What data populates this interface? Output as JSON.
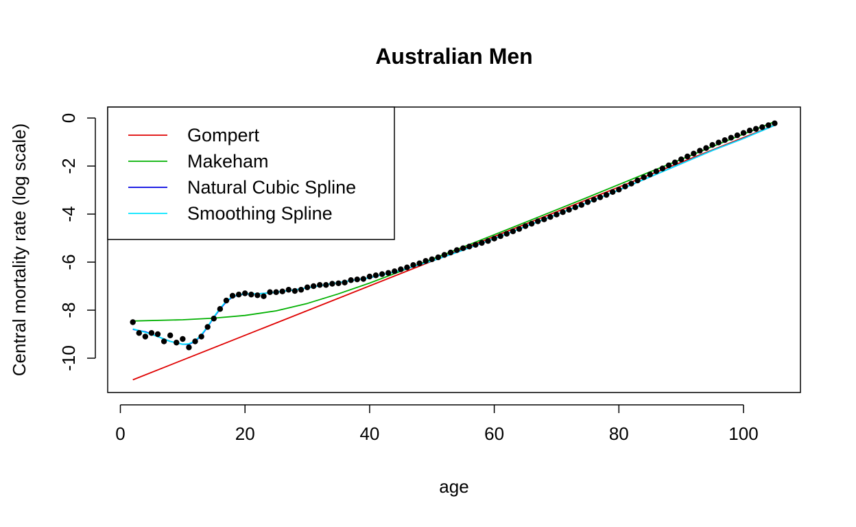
{
  "chart_data": {
    "type": "line",
    "title": "Australian Men",
    "xlabel": "age",
    "ylabel": "Central mortality rate (log scale)",
    "xlim": [
      0,
      105
    ],
    "ylim": [
      -11,
      0
    ],
    "xticks": [
      0,
      20,
      40,
      60,
      80,
      100
    ],
    "yticks": [
      0,
      -2,
      -4,
      -6,
      -8,
      -10
    ],
    "grid": false,
    "legend_position": "top-left",
    "observed": {
      "x": [
        2,
        3,
        4,
        5,
        6,
        7,
        8,
        9,
        10,
        11,
        12,
        13,
        14,
        15,
        16,
        17,
        18,
        19,
        20,
        21,
        22,
        23,
        24,
        25,
        26,
        27,
        28,
        29,
        30,
        31,
        32,
        33,
        34,
        35,
        36,
        37,
        38,
        39,
        40,
        41,
        42,
        43,
        44,
        45,
        46,
        47,
        48,
        49,
        50,
        51,
        52,
        53,
        54,
        55,
        56,
        57,
        58,
        59,
        60,
        61,
        62,
        63,
        64,
        65,
        66,
        67,
        68,
        69,
        70,
        71,
        72,
        73,
        74,
        75,
        76,
        77,
        78,
        79,
        80,
        81,
        82,
        83,
        84,
        85,
        86,
        87,
        88,
        89,
        90,
        91,
        92,
        93,
        94,
        95,
        96,
        97,
        98,
        99,
        100,
        101,
        102,
        103,
        104,
        105
      ],
      "y": [
        -8.5,
        -8.95,
        -9.1,
        -8.95,
        -9.0,
        -9.3,
        -9.05,
        -9.35,
        -9.2,
        -9.55,
        -9.3,
        -9.1,
        -8.7,
        -8.35,
        -7.95,
        -7.6,
        -7.4,
        -7.35,
        -7.3,
        -7.35,
        -7.38,
        -7.42,
        -7.25,
        -7.25,
        -7.22,
        -7.15,
        -7.2,
        -7.15,
        -7.05,
        -7.0,
        -6.95,
        -6.95,
        -6.9,
        -6.88,
        -6.85,
        -6.75,
        -6.72,
        -6.7,
        -6.6,
        -6.55,
        -6.5,
        -6.45,
        -6.38,
        -6.3,
        -6.22,
        -6.12,
        -6.05,
        -5.95,
        -5.88,
        -5.8,
        -5.7,
        -5.6,
        -5.5,
        -5.42,
        -5.35,
        -5.28,
        -5.2,
        -5.12,
        -5.02,
        -4.92,
        -4.82,
        -4.72,
        -4.62,
        -4.5,
        -4.4,
        -4.3,
        -4.22,
        -4.12,
        -4.02,
        -3.92,
        -3.82,
        -3.72,
        -3.62,
        -3.5,
        -3.4,
        -3.3,
        -3.2,
        -3.08,
        -2.98,
        -2.85,
        -2.73,
        -2.6,
        -2.47,
        -2.35,
        -2.22,
        -2.1,
        -1.97,
        -1.85,
        -1.72,
        -1.6,
        -1.48,
        -1.36,
        -1.25,
        -1.12,
        -1.02,
        -0.92,
        -0.82,
        -0.72,
        -0.62,
        -0.52,
        -0.45,
        -0.38,
        -0.3,
        -0.22
      ]
    },
    "series": [
      {
        "name": "Gompert",
        "color": "#DF0000",
        "x": [
          2,
          105
        ],
        "y": [
          -10.9,
          -0.3
        ]
      },
      {
        "name": "Makeham",
        "color": "#00B000",
        "x": [
          2,
          10,
          15,
          20,
          25,
          30,
          35,
          40,
          45,
          50,
          55,
          60,
          65,
          70,
          75,
          80,
          85,
          90,
          95,
          100,
          105
        ],
        "y": [
          -8.45,
          -8.4,
          -8.33,
          -8.22,
          -8.03,
          -7.72,
          -7.32,
          -6.87,
          -6.38,
          -5.88,
          -5.37,
          -4.86,
          -4.34,
          -3.82,
          -3.3,
          -2.77,
          -2.24,
          -1.72,
          -1.19,
          -0.67,
          -0.15
        ]
      },
      {
        "name": "Natural Cubic Spline",
        "color": "#0000E0",
        "x": [
          2,
          4,
          6,
          8,
          10,
          11,
          12,
          13,
          14,
          15,
          16,
          17,
          18,
          19,
          20,
          22,
          24,
          26,
          28,
          30,
          35,
          40,
          45,
          50,
          55,
          60,
          65,
          70,
          75,
          80,
          85,
          90,
          95,
          100,
          105
        ],
        "y": [
          -8.8,
          -8.9,
          -9.1,
          -9.3,
          -9.42,
          -9.42,
          -9.3,
          -9.05,
          -8.7,
          -8.3,
          -7.95,
          -7.65,
          -7.45,
          -7.37,
          -7.33,
          -7.32,
          -7.28,
          -7.22,
          -7.15,
          -7.07,
          -6.85,
          -6.65,
          -6.35,
          -5.95,
          -5.5,
          -5.02,
          -4.52,
          -4.02,
          -3.52,
          -3.0,
          -2.45,
          -1.9,
          -1.35,
          -0.85,
          -0.3
        ]
      },
      {
        "name": "Smoothing Spline",
        "color": "#00E5FF",
        "x": [
          2,
          4,
          6,
          8,
          10,
          11,
          12,
          13,
          14,
          15,
          16,
          17,
          18,
          19,
          20,
          22,
          24,
          26,
          28,
          30,
          35,
          40,
          45,
          50,
          55,
          60,
          65,
          70,
          75,
          80,
          85,
          90,
          95,
          100,
          105
        ],
        "y": [
          -8.78,
          -8.92,
          -9.1,
          -9.3,
          -9.42,
          -9.4,
          -9.28,
          -9.02,
          -8.68,
          -8.28,
          -7.92,
          -7.62,
          -7.43,
          -7.36,
          -7.32,
          -7.32,
          -7.28,
          -7.22,
          -7.15,
          -7.07,
          -6.85,
          -6.65,
          -6.35,
          -5.95,
          -5.5,
          -5.02,
          -4.52,
          -4.02,
          -3.52,
          -3.0,
          -2.45,
          -1.9,
          -1.35,
          -0.85,
          -0.3
        ]
      }
    ]
  }
}
